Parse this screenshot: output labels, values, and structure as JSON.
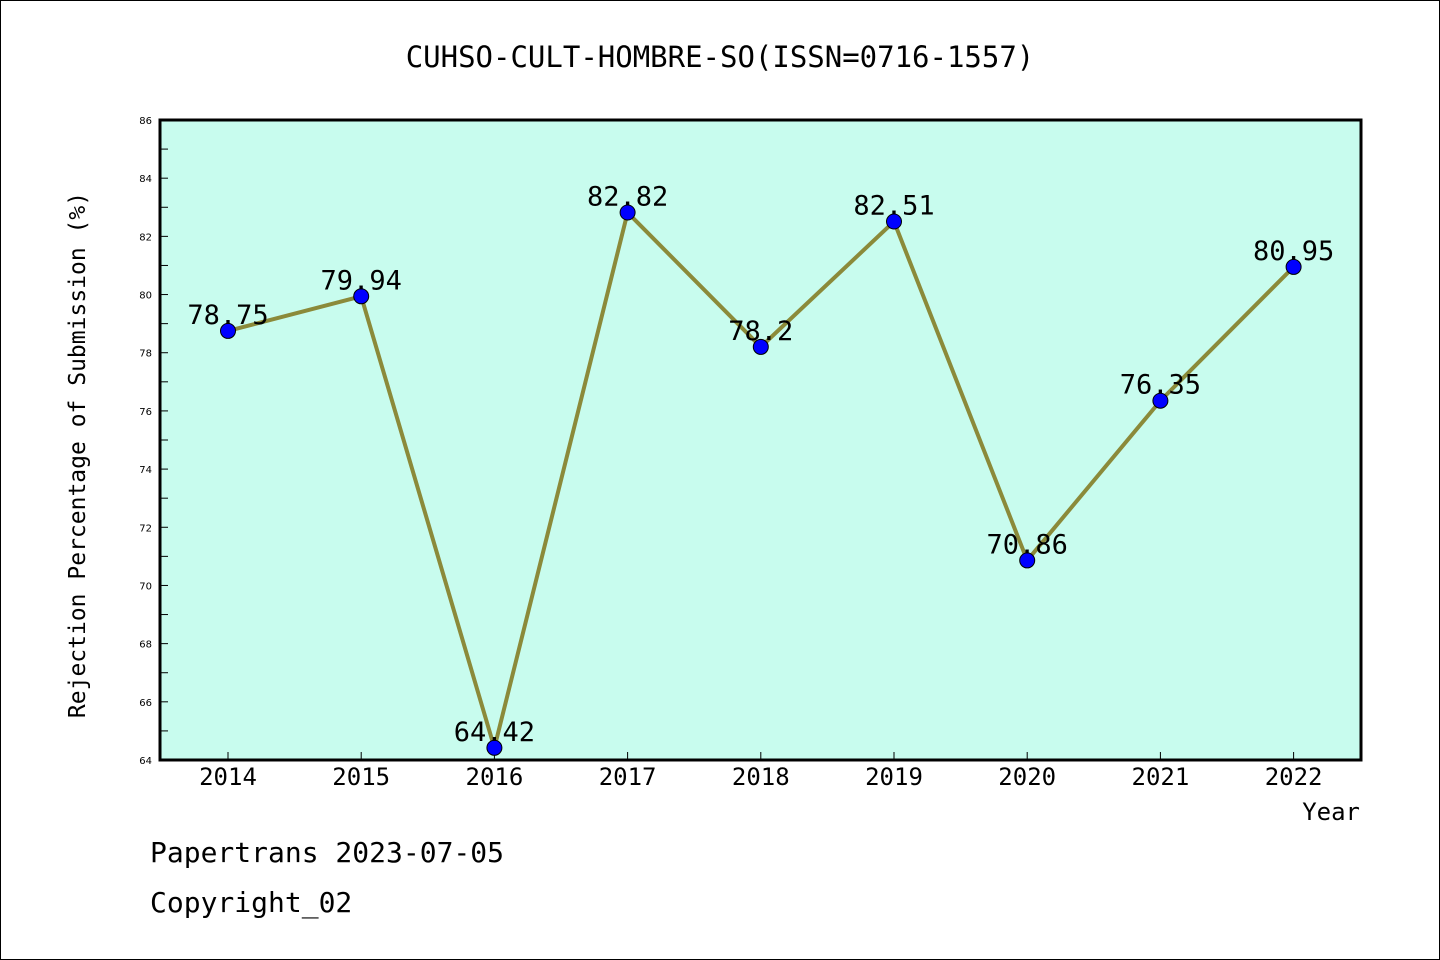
{
  "chart_data": {
    "type": "line",
    "title": "CUHSO-CULT-HOMBRE-SO(ISSN=0716-1557)",
    "xlabel": "Year",
    "ylabel": "Rejection Percentage of Submission (%)",
    "categories": [
      "2014",
      "2015",
      "2016",
      "2017",
      "2018",
      "2019",
      "2020",
      "2021",
      "2022"
    ],
    "series": [
      {
        "values": [
          78.75,
          79.94,
          64.42,
          82.82,
          78.2,
          82.51,
          70.86,
          76.35,
          80.95
        ]
      }
    ],
    "data_labels": [
      "78.75",
      "79.94",
      "64.42",
      "82.82",
      "78.2",
      "82.51",
      "70.86",
      "76.35",
      "80.95"
    ],
    "ylim": [
      64,
      86
    ],
    "y_ticks": [
      64,
      66,
      68,
      70,
      72,
      74,
      76,
      78,
      80,
      82,
      84,
      86
    ],
    "grid": false,
    "colors": {
      "plot_background": "#c8fcee",
      "line": "#8b8a3a",
      "marker": "#0000ff"
    }
  },
  "footer": {
    "line1": "Papertrans 2023-07-05",
    "line2": "Copyright_02"
  }
}
